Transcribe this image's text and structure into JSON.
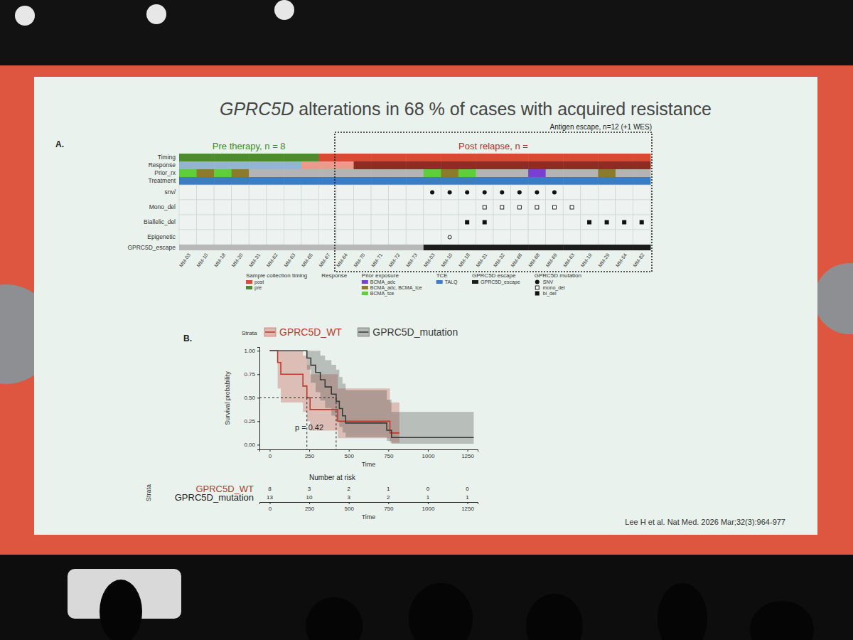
{
  "slide": {
    "title": "GPRC5D alterations in 68 % of cases with acquired resistance",
    "citation": "Lee H et al. Nat Med. 2026 Mar;32(3):964-977"
  },
  "chart_data": [
    {
      "type": "oncoprint",
      "panel": "A.",
      "samples": [
        "MM-03",
        "MM-10",
        "MM-18",
        "MM-20",
        "MM-31",
        "MM-62",
        "MM-63",
        "MM-65",
        "MM-67",
        "MM-64",
        "MM-70",
        "MM-71",
        "MM-72",
        "MM-73",
        "MM-03",
        "MM-10",
        "MM-18",
        "MM-31",
        "MM-32",
        "MM-66",
        "MM-68",
        "MM-69",
        "MM-63",
        "MM-19",
        "MM-29",
        "MM-54",
        "MM-82"
      ],
      "groups": [
        {
          "label": "Pre therapy, n = 8",
          "color": "#3f8a2a",
          "start": 0,
          "end": 7
        },
        {
          "label": "Post relapse, n =",
          "color": "#b3302a",
          "start": 9,
          "end": 26,
          "line_style": "dotted",
          "box_label": "Antigen escape, n=12 (+1 WES)"
        }
      ],
      "tracks": [
        {
          "name": "Timing",
          "colors": [
            "#4e8a2e",
            "#4e8a2e",
            "#4e8a2e",
            "#4e8a2e",
            "#4e8a2e",
            "#4e8a2e",
            "#4e8a2e",
            "#4e8a2e",
            "#d94a35",
            "#d94a35",
            "#d94a35",
            "#d94a35",
            "#d94a35",
            "#d94a35",
            "#d94a35",
            "#d94a35",
            "#d94a35",
            "#d94a35",
            "#d94a35",
            "#d94a35",
            "#d94a35",
            "#d94a35",
            "#d94a35",
            "#d94a35",
            "#d94a35",
            "#d94a35",
            "#d94a35"
          ]
        },
        {
          "name": "Response",
          "colors": [
            "#93b4d3",
            "#93b4d3",
            "#93b4d3",
            "#93b4d3",
            "#93b4d3",
            "#93b4d3",
            "#93b4d3",
            "#eb9a8c",
            "#eb9a8c",
            "#eb9a8c",
            "#8e2b23",
            "#8e2b23",
            "#8e2b23",
            "#8e2b23",
            "#8e2b23",
            "#8e2b23",
            "#8e2b23",
            "#8e2b23",
            "#8e2b23",
            "#8e2b23",
            "#8e2b23",
            "#8e2b23",
            "#8e2b23",
            "#8e2b23",
            "#8e2b23",
            "#8e2b23",
            "#8e2b23"
          ]
        },
        {
          "name": "Prior_rx",
          "colors": [
            "#5ccf3a",
            "#8c7b2a",
            "#5ccf3a",
            "#8c7b2a",
            "#b4b4b4",
            "#b4b4b4",
            "#b4b4b4",
            "#b4b4b4",
            "#b4b4b4",
            "#b4b4b4",
            "#b4b4b4",
            "#b4b4b4",
            "#b4b4b4",
            "#b4b4b4",
            "#5ccf3a",
            "#8c7b2a",
            "#5ccf3a",
            "#b4b4b4",
            "#b4b4b4",
            "#b4b4b4",
            "#7a3fd1",
            "#b4b4b4",
            "#b4b4b4",
            "#b4b4b4",
            "#8c7b2a",
            "#b4b4b4",
            "#b4b4b4"
          ]
        },
        {
          "name": "Treatment",
          "colors": [
            "#3b7dc4",
            "#3b7dc4",
            "#3b7dc4",
            "#3b7dc4",
            "#3b7dc4",
            "#3b7dc4",
            "#3b7dc4",
            "#3b7dc4",
            "#3b7dc4",
            "#3b7dc4",
            "#3b7dc4",
            "#3b7dc4",
            "#3b7dc4",
            "#3b7dc4",
            "#3b7dc4",
            "#3b7dc4",
            "#3b7dc4",
            "#3b7dc4",
            "#3b7dc4",
            "#3b7dc4",
            "#3b7dc4",
            "#3b7dc4",
            "#3b7dc4",
            "#3b7dc4",
            "#3b7dc4",
            "#3b7dc4",
            "#3b7dc4"
          ]
        }
      ],
      "alterations": [
        {
          "name": "snv/",
          "marker": "circle",
          "values": [
            0,
            0,
            0,
            0,
            0,
            0,
            0,
            0,
            0,
            0,
            0,
            0,
            0,
            0,
            1,
            1,
            1,
            1,
            1,
            1,
            1,
            1,
            0,
            0,
            0,
            0,
            0
          ]
        },
        {
          "name": "Mono_del",
          "marker": "square_open",
          "values": [
            0,
            0,
            0,
            0,
            0,
            0,
            0,
            0,
            0,
            0,
            0,
            0,
            0,
            0,
            0,
            0,
            0,
            1,
            1,
            1,
            1,
            1,
            1,
            0,
            0,
            0,
            0
          ]
        },
        {
          "name": "Biallelic_del",
          "marker": "square",
          "values": [
            0,
            0,
            0,
            0,
            0,
            0,
            0,
            0,
            0,
            0,
            0,
            0,
            0,
            0,
            0,
            0,
            1,
            1,
            0,
            0,
            0,
            0,
            0,
            1,
            1,
            1,
            1
          ]
        },
        {
          "name": "Epigenetic",
          "marker": "circle_open",
          "values": [
            0,
            0,
            0,
            0,
            0,
            0,
            0,
            0,
            0,
            0,
            0,
            0,
            0,
            0,
            0,
            1,
            0,
            0,
            0,
            0,
            0,
            0,
            0,
            0,
            0,
            0,
            0
          ]
        }
      ],
      "summary_track": {
        "name": "GPRC5D_escape",
        "colors": [
          "#b8b8b8",
          "#b8b8b8",
          "#b8b8b8",
          "#b8b8b8",
          "#b8b8b8",
          "#b8b8b8",
          "#b8b8b8",
          "#b8b8b8",
          "#b8b8b8",
          "#b8b8b8",
          "#b8b8b8",
          "#b8b8b8",
          "#b8b8b8",
          "#b8b8b8",
          "#1c1c1c",
          "#1c1c1c",
          "#1c1c1c",
          "#1c1c1c",
          "#1c1c1c",
          "#1c1c1c",
          "#1c1c1c",
          "#1c1c1c",
          "#1c1c1c",
          "#1c1c1c",
          "#1c1c1c",
          "#1c1c1c",
          "#1c1c1c"
        ]
      },
      "legend_groups": [
        {
          "title": "Sample collection timing",
          "items": [
            {
              "label": "post",
              "color": "#d94a35"
            },
            {
              "label": "pre",
              "color": "#4e8a2e"
            }
          ]
        },
        {
          "title": "Response",
          "items": []
        },
        {
          "title": "Prior exposure",
          "items": [
            {
              "label": "BCMA_adc",
              "color": "#7a3fd1"
            },
            {
              "label": "BCMA_adc, BCMA_tce",
              "color": "#8c7b2a"
            },
            {
              "label": "BCMA_tce",
              "color": "#5ccf3a"
            }
          ]
        },
        {
          "title": "TCE",
          "items": [
            {
              "label": "TALQ",
              "color": "#3b7dc4"
            }
          ]
        },
        {
          "title": "GPRC5D escape",
          "items": [
            {
              "label": "GPRC5D_escape",
              "color": "#1c1c1c"
            }
          ]
        },
        {
          "title": "GPRC5D mutation",
          "items": [
            {
              "label": "SNV",
              "marker": "circle"
            },
            {
              "label": "mono_del",
              "marker": "square_open"
            },
            {
              "label": "bi_del",
              "marker": "square"
            }
          ]
        }
      ]
    },
    {
      "type": "survival",
      "panel": "B.",
      "legend_title": "Strata",
      "legend": "top",
      "xlabel": "Time",
      "ylabel": "Survival probability",
      "xlim": [
        -65,
        1315
      ],
      "ylim": [
        -0.05,
        1.04
      ],
      "xticks": [
        0,
        250,
        500,
        750,
        1000,
        1250
      ],
      "yticks": [
        {
          "value": 0,
          "label": "0.00"
        },
        {
          "value": 0.25,
          "label": "0.25"
        },
        {
          "value": 0.5,
          "label": "0.50"
        },
        {
          "value": 0.75,
          "label": "0.75"
        },
        {
          "value": 1,
          "label": "1.00"
        }
      ],
      "grid": false,
      "median_level": 0.5,
      "annotation": "p = 0.42",
      "series": [
        {
          "name": "GPRC5D_WT",
          "color": "#c0392b",
          "median": 235,
          "x": [
            0,
            50,
            70,
            210,
            235,
            255,
            430,
            760,
            820
          ],
          "values": [
            1,
            0.875,
            0.75,
            0.625,
            0.5,
            0.375,
            0.25,
            0.125,
            0.125
          ],
          "lower": [
            1,
            0.6,
            0.45,
            0.35,
            0.25,
            0.15,
            0.07,
            0.02,
            0.02
          ],
          "upper": [
            1,
            1,
            1,
            0.95,
            0.85,
            0.75,
            0.6,
            0.45,
            0.45
          ]
        },
        {
          "name": "GPRC5D_mutation",
          "color": "#3a3a3a",
          "median": 420,
          "x": [
            0,
            235,
            260,
            290,
            320,
            350,
            390,
            420,
            440,
            460,
            480,
            740,
            770,
            1290
          ],
          "values": [
            1,
            0.923,
            0.846,
            0.769,
            0.692,
            0.615,
            0.538,
            0.462,
            0.385,
            0.308,
            0.231,
            0.154,
            0.077,
            0.077
          ],
          "lower": [
            1,
            0.8,
            0.66,
            0.56,
            0.47,
            0.39,
            0.31,
            0.25,
            0.19,
            0.13,
            0.08,
            0.04,
            0.01,
            0.01
          ],
          "upper": [
            1,
            1,
            1,
            1,
            0.95,
            0.9,
            0.85,
            0.8,
            0.72,
            0.65,
            0.58,
            0.48,
            0.35,
            0.35
          ]
        }
      ],
      "risk_table": {
        "title": "Number at risk",
        "xlabel": "Time",
        "ylabel": "Strata",
        "x": [
          0,
          250,
          500,
          750,
          1000,
          1250
        ],
        "rows": [
          {
            "name": "GPRC5D_WT",
            "color": "#b03a2e",
            "values": [
              8,
              3,
              2,
              1,
              0,
              0
            ]
          },
          {
            "name": "GPRC5D_mutation",
            "color": "#222222",
            "values": [
              13,
              10,
              3,
              2,
              1,
              1
            ]
          }
        ]
      }
    }
  ]
}
